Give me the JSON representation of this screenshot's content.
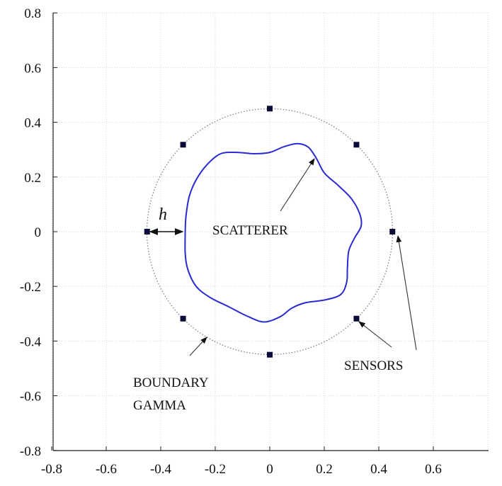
{
  "chart_data": {
    "type": "scatter",
    "title": "",
    "xlabel": "",
    "ylabel": "",
    "xlim": [
      -0.8,
      0.8
    ],
    "ylim": [
      -0.8,
      0.8
    ],
    "grid": true,
    "xticks": [
      -0.8,
      -0.6,
      -0.4,
      -0.2,
      0,
      0.2,
      0.4,
      0.6
    ],
    "yticks": [
      -0.8,
      -0.6,
      -0.4,
      -0.2,
      0,
      0.2,
      0.4,
      0.6,
      0.8
    ],
    "xtick_labels": [
      "-0.8",
      "-0.6",
      "-0.4",
      "-0.2",
      "0",
      "0.2",
      "0.4",
      "0.6"
    ],
    "ytick_labels": [
      "0.8",
      "0.6",
      "0.4",
      "0.2",
      "0",
      "-0.2",
      "-0.4",
      "-0.6",
      "-0.8"
    ],
    "boundary_circle": {
      "center": [
        0,
        0
      ],
      "radius": 0.45,
      "style": "dotted",
      "color": "#777777"
    },
    "sensors": {
      "color": "#0b0b3a",
      "points": [
        [
          0.45,
          0
        ],
        [
          0.318,
          0.318
        ],
        [
          0,
          0.45
        ],
        [
          -0.318,
          0.318
        ],
        [
          -0.45,
          0
        ],
        [
          -0.318,
          -0.318
        ],
        [
          0,
          -0.45
        ],
        [
          0.318,
          -0.318
        ]
      ]
    },
    "scatterer": {
      "color": "#2b2bd4",
      "points": [
        [
          -0.31,
          0.0
        ],
        [
          -0.307,
          0.06
        ],
        [
          -0.295,
          0.13
        ],
        [
          -0.27,
          0.19
        ],
        [
          -0.23,
          0.245
        ],
        [
          -0.18,
          0.285
        ],
        [
          -0.12,
          0.29
        ],
        [
          -0.06,
          0.285
        ],
        [
          0.0,
          0.29
        ],
        [
          0.05,
          0.31
        ],
        [
          0.1,
          0.322
        ],
        [
          0.14,
          0.31
        ],
        [
          0.17,
          0.27
        ],
        [
          0.2,
          0.215
        ],
        [
          0.25,
          0.17
        ],
        [
          0.3,
          0.12
        ],
        [
          0.33,
          0.065
        ],
        [
          0.335,
          0.02
        ],
        [
          0.31,
          -0.025
        ],
        [
          0.29,
          -0.07
        ],
        [
          0.285,
          -0.13
        ],
        [
          0.282,
          -0.185
        ],
        [
          0.26,
          -0.23
        ],
        [
          0.2,
          -0.25
        ],
        [
          0.13,
          -0.26
        ],
        [
          0.08,
          -0.28
        ],
        [
          0.04,
          -0.31
        ],
        [
          -0.02,
          -0.33
        ],
        [
          -0.08,
          -0.31
        ],
        [
          -0.15,
          -0.275
        ],
        [
          -0.22,
          -0.24
        ],
        [
          -0.27,
          -0.2
        ],
        [
          -0.3,
          -0.14
        ],
        [
          -0.31,
          -0.08
        ],
        [
          -0.31,
          0.0
        ]
      ]
    },
    "annotations": {
      "h_label": "h",
      "scatterer_label": "SCATTERER",
      "sensors_label": "SENSORS",
      "boundary_line1": "BOUNDARY",
      "boundary_line2": "GAMMA"
    }
  }
}
